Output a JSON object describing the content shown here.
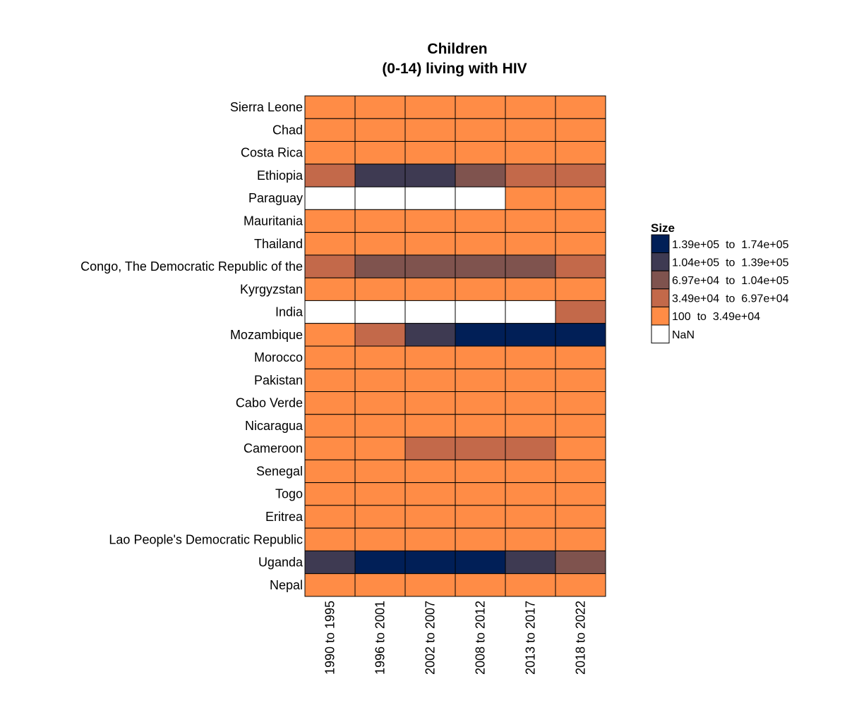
{
  "chart_data": {
    "type": "heatmap",
    "title": "Children\n(0-14) living with HIV",
    "title_lines": [
      "Children",
      "(0-14) living with HIV"
    ],
    "x_categories": [
      "1990 to 1995",
      "1996 to 2001",
      "2002 to 2007",
      "2008 to 2012",
      "2013 to 2017",
      "2018 to 2022"
    ],
    "y_categories": [
      "Sierra Leone",
      "Chad",
      "Costa Rica",
      "Ethiopia",
      "Paraguay",
      "Mauritania",
      "Thailand",
      "Congo, The Democratic Republic of the",
      "Kyrgyzstan",
      "India",
      "Mozambique",
      "Morocco",
      "Pakistan",
      "Cabo Verde",
      "Nicaragua",
      "Cameroon",
      "Senegal",
      "Togo",
      "Eritrea",
      "Lao People's Democratic Republic",
      "Uganda",
      "Nepal"
    ],
    "cell_bins": [
      [
        0,
        0,
        0,
        0,
        0,
        0
      ],
      [
        0,
        0,
        0,
        0,
        0,
        0
      ],
      [
        0,
        0,
        0,
        0,
        0,
        0
      ],
      [
        1,
        3,
        3,
        2,
        1,
        1
      ],
      [
        5,
        5,
        5,
        5,
        0,
        0
      ],
      [
        0,
        0,
        0,
        0,
        0,
        0
      ],
      [
        0,
        0,
        0,
        0,
        0,
        0
      ],
      [
        1,
        2,
        2,
        2,
        2,
        1
      ],
      [
        0,
        0,
        0,
        0,
        0,
        0
      ],
      [
        5,
        5,
        5,
        5,
        5,
        1
      ],
      [
        0,
        1,
        3,
        4,
        4,
        4
      ],
      [
        0,
        0,
        0,
        0,
        0,
        0
      ],
      [
        0,
        0,
        0,
        0,
        0,
        0
      ],
      [
        0,
        0,
        0,
        0,
        0,
        0
      ],
      [
        0,
        0,
        0,
        0,
        0,
        0
      ],
      [
        0,
        0,
        1,
        1,
        1,
        0
      ],
      [
        0,
        0,
        0,
        0,
        0,
        0
      ],
      [
        0,
        0,
        0,
        0,
        0,
        0
      ],
      [
        0,
        0,
        0,
        0,
        0,
        0
      ],
      [
        0,
        0,
        0,
        0,
        0,
        0
      ],
      [
        3,
        4,
        4,
        4,
        3,
        2
      ],
      [
        0,
        0,
        0,
        0,
        0,
        0
      ]
    ],
    "legend": {
      "title": "Size",
      "placement": "right",
      "bins": [
        {
          "label": "100  to  3.49e+04",
          "color": "#FF8C46"
        },
        {
          "label": "3.49e+04  to  6.97e+04",
          "color": "#C3694A"
        },
        {
          "label": "6.97e+04  to  1.04e+05",
          "color": "#7F534E"
        },
        {
          "label": "1.04e+05  to  1.39e+05",
          "color": "#3E3A52"
        },
        {
          "label": "1.39e+05  to  1.74e+05",
          "color": "#011F57"
        },
        {
          "label": "NaN",
          "color": "#FFFFFF"
        }
      ]
    },
    "grid": false
  }
}
